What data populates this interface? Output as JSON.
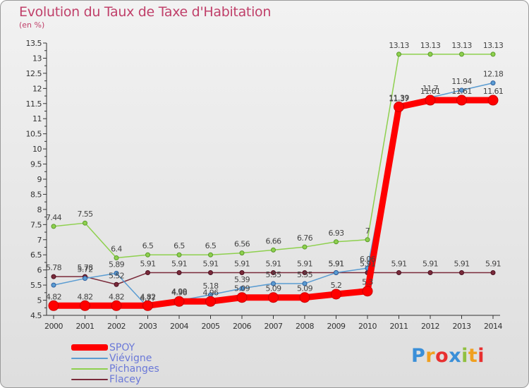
{
  "chart_data": {
    "type": "line",
    "title": "Evolution du Taux de Taxe d'Habitation",
    "subtitle": "(en %)",
    "x": [
      "2000",
      "2001",
      "2002",
      "2003",
      "2004",
      "2005",
      "2006",
      "2007",
      "2008",
      "2009",
      "2010",
      "2011",
      "2012",
      "2013",
      "2014"
    ],
    "ylim": [
      4.5,
      13.5
    ],
    "yticks": [
      "4.5",
      "5",
      "5.5",
      "6",
      "6.5",
      "7",
      "7.5",
      "8",
      "8.5",
      "9",
      "9.5",
      "10",
      "10.5",
      "11",
      "11.5",
      "12",
      "12.5",
      "13",
      "13.5"
    ],
    "grid": false,
    "legend_position": "bottom-left",
    "series": [
      {
        "name": "SPOY",
        "color": "#ff0000",
        "values": [
          4.82,
          4.82,
          4.82,
          4.82,
          4.96,
          4.96,
          5.09,
          5.09,
          5.09,
          5.2,
          5.3,
          11.39,
          11.61,
          11.61,
          11.61
        ],
        "labels": [
          "4.82",
          "4.82",
          "4.82",
          "4.82",
          "4.96",
          "4.96",
          "5.09",
          "5.09",
          "5.09",
          "5.2",
          "5.3",
          "11.39",
          "11.61",
          "11.61",
          "11.61"
        ]
      },
      {
        "name": "Viévigne",
        "color": "#5a9cd2",
        "values": [
          5.5,
          5.72,
          5.89,
          4.77,
          4.99,
          5.18,
          5.39,
          5.55,
          5.55,
          5.91,
          6.06,
          11.37,
          11.7,
          11.94,
          12.18
        ],
        "labels": [
          "",
          "5.72",
          "5.89",
          "4.77",
          "4.99",
          "5.18",
          "5.39",
          "5.55",
          "5.55",
          "5.91",
          "6.06",
          "11.37",
          "11.7",
          "11.94",
          "12.18"
        ]
      },
      {
        "name": "Pichanges",
        "color": "#8ed04e",
        "values": [
          7.44,
          7.55,
          6.4,
          6.5,
          6.5,
          6.5,
          6.56,
          6.66,
          6.76,
          6.93,
          7.0,
          13.13,
          13.13,
          13.13,
          13.13
        ],
        "labels": [
          "7.44",
          "7.55",
          "6.4",
          "6.5",
          "6.5",
          "6.5",
          "6.56",
          "6.66",
          "6.76",
          "6.93",
          "7",
          "13.13",
          "13.13",
          "13.13",
          "13.13"
        ]
      },
      {
        "name": "Flacey",
        "color": "#7a2a3a",
        "values": [
          5.78,
          5.78,
          5.52,
          5.91,
          5.91,
          5.91,
          5.91,
          5.91,
          5.91,
          5.91,
          5.91,
          5.91,
          5.91,
          5.91,
          5.91
        ],
        "labels": [
          "5.78",
          "5.78",
          "5.52",
          "5.91",
          "5.91",
          "5.91",
          "5.91",
          "5.91",
          "5.91",
          "5.91",
          "5.91",
          "5.91",
          "5.91",
          "5.91",
          "5.91"
        ]
      }
    ]
  },
  "logo": {
    "letters": [
      "P",
      "r",
      "o",
      "x",
      "i",
      "t",
      "i"
    ],
    "colors": [
      "#3a8fd8",
      "#f0a020",
      "#e83030",
      "#3a8fd8",
      "#90c040",
      "#f0a020",
      "#e83030"
    ]
  }
}
